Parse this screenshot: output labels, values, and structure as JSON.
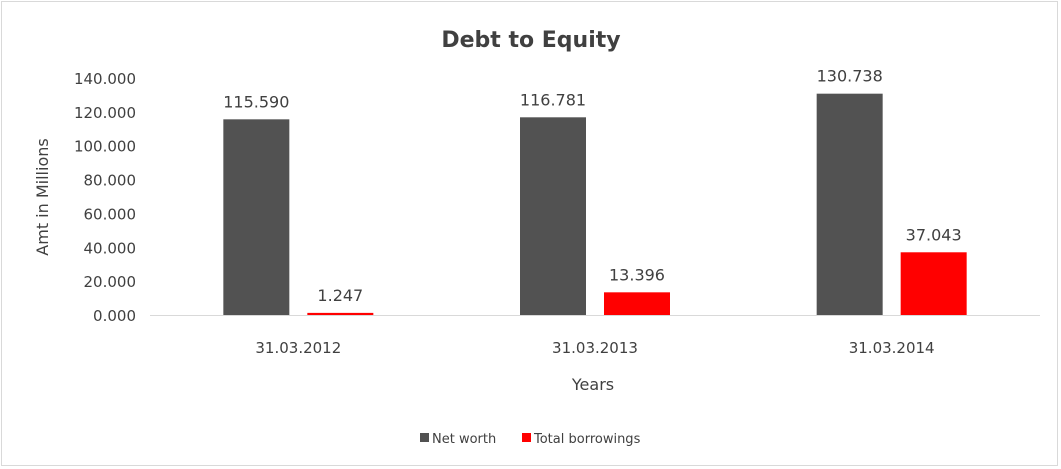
{
  "chart_data": {
    "type": "bar",
    "title": "Debt to Equity",
    "xlabel": "Years",
    "ylabel": "Amt in Millions",
    "categories": [
      "31.03.2012",
      "31.03.2013",
      "31.03.2014"
    ],
    "series": [
      {
        "name": "Net worth",
        "values": [
          115.59,
          116.781,
          130.738
        ],
        "labels": [
          "115.590",
          "116.781",
          "130.738"
        ],
        "color": "#525252"
      },
      {
        "name": "Total borrowings",
        "values": [
          1.247,
          13.396,
          37.043
        ],
        "labels": [
          "1.247",
          "13.396",
          "37.043"
        ],
        "color": "#ff0000"
      }
    ],
    "ylim": [
      0,
      140
    ],
    "yticks": [
      "0.000",
      "20.000",
      "40.000",
      "60.000",
      "80.000",
      "100.000",
      "120.000",
      "140.000"
    ],
    "grid": false,
    "legend": "bottom"
  }
}
